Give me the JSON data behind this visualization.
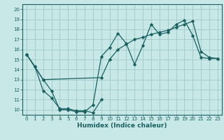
{
  "xlabel": "Humidex (Indice chaleur)",
  "bg_color": "#c8e8e8",
  "grid_color": "#a0c8c8",
  "line_color": "#1a6060",
  "xlim": [
    -0.5,
    23.5
  ],
  "ylim": [
    9.5,
    20.5
  ],
  "yticks": [
    10,
    11,
    12,
    13,
    14,
    15,
    16,
    17,
    18,
    19,
    20
  ],
  "xticks": [
    0,
    1,
    2,
    3,
    4,
    5,
    6,
    7,
    8,
    9,
    10,
    11,
    12,
    13,
    14,
    15,
    16,
    17,
    18,
    19,
    20,
    21,
    22,
    23
  ],
  "line1_x": [
    0,
    1,
    2,
    3,
    4,
    5,
    6,
    7,
    8,
    9,
    10,
    11,
    12,
    13,
    14,
    15,
    16,
    17,
    18,
    19,
    20,
    21,
    22,
    23
  ],
  "line1_y": [
    15.5,
    14.3,
    13.0,
    11.9,
    10.0,
    10.0,
    9.8,
    9.8,
    10.5,
    15.3,
    16.2,
    17.6,
    16.6,
    14.5,
    16.4,
    18.5,
    17.5,
    17.7,
    18.5,
    18.9,
    17.4,
    15.2,
    15.1,
    15.1
  ],
  "line2_x": [
    0,
    2,
    9,
    10,
    11,
    12,
    13,
    14,
    15,
    16,
    17,
    18,
    19,
    20,
    21,
    22,
    23
  ],
  "line2_y": [
    15.5,
    13.0,
    13.2,
    15.0,
    16.0,
    16.5,
    17.0,
    17.2,
    17.5,
    17.7,
    17.9,
    18.2,
    18.5,
    18.8,
    15.8,
    15.2,
    15.1
  ],
  "line3_x": [
    0,
    1,
    2,
    3,
    4,
    5,
    6,
    7,
    8,
    9
  ],
  "line3_y": [
    15.5,
    14.3,
    11.9,
    11.2,
    10.1,
    10.1,
    9.9,
    9.9,
    9.7,
    11.0
  ]
}
